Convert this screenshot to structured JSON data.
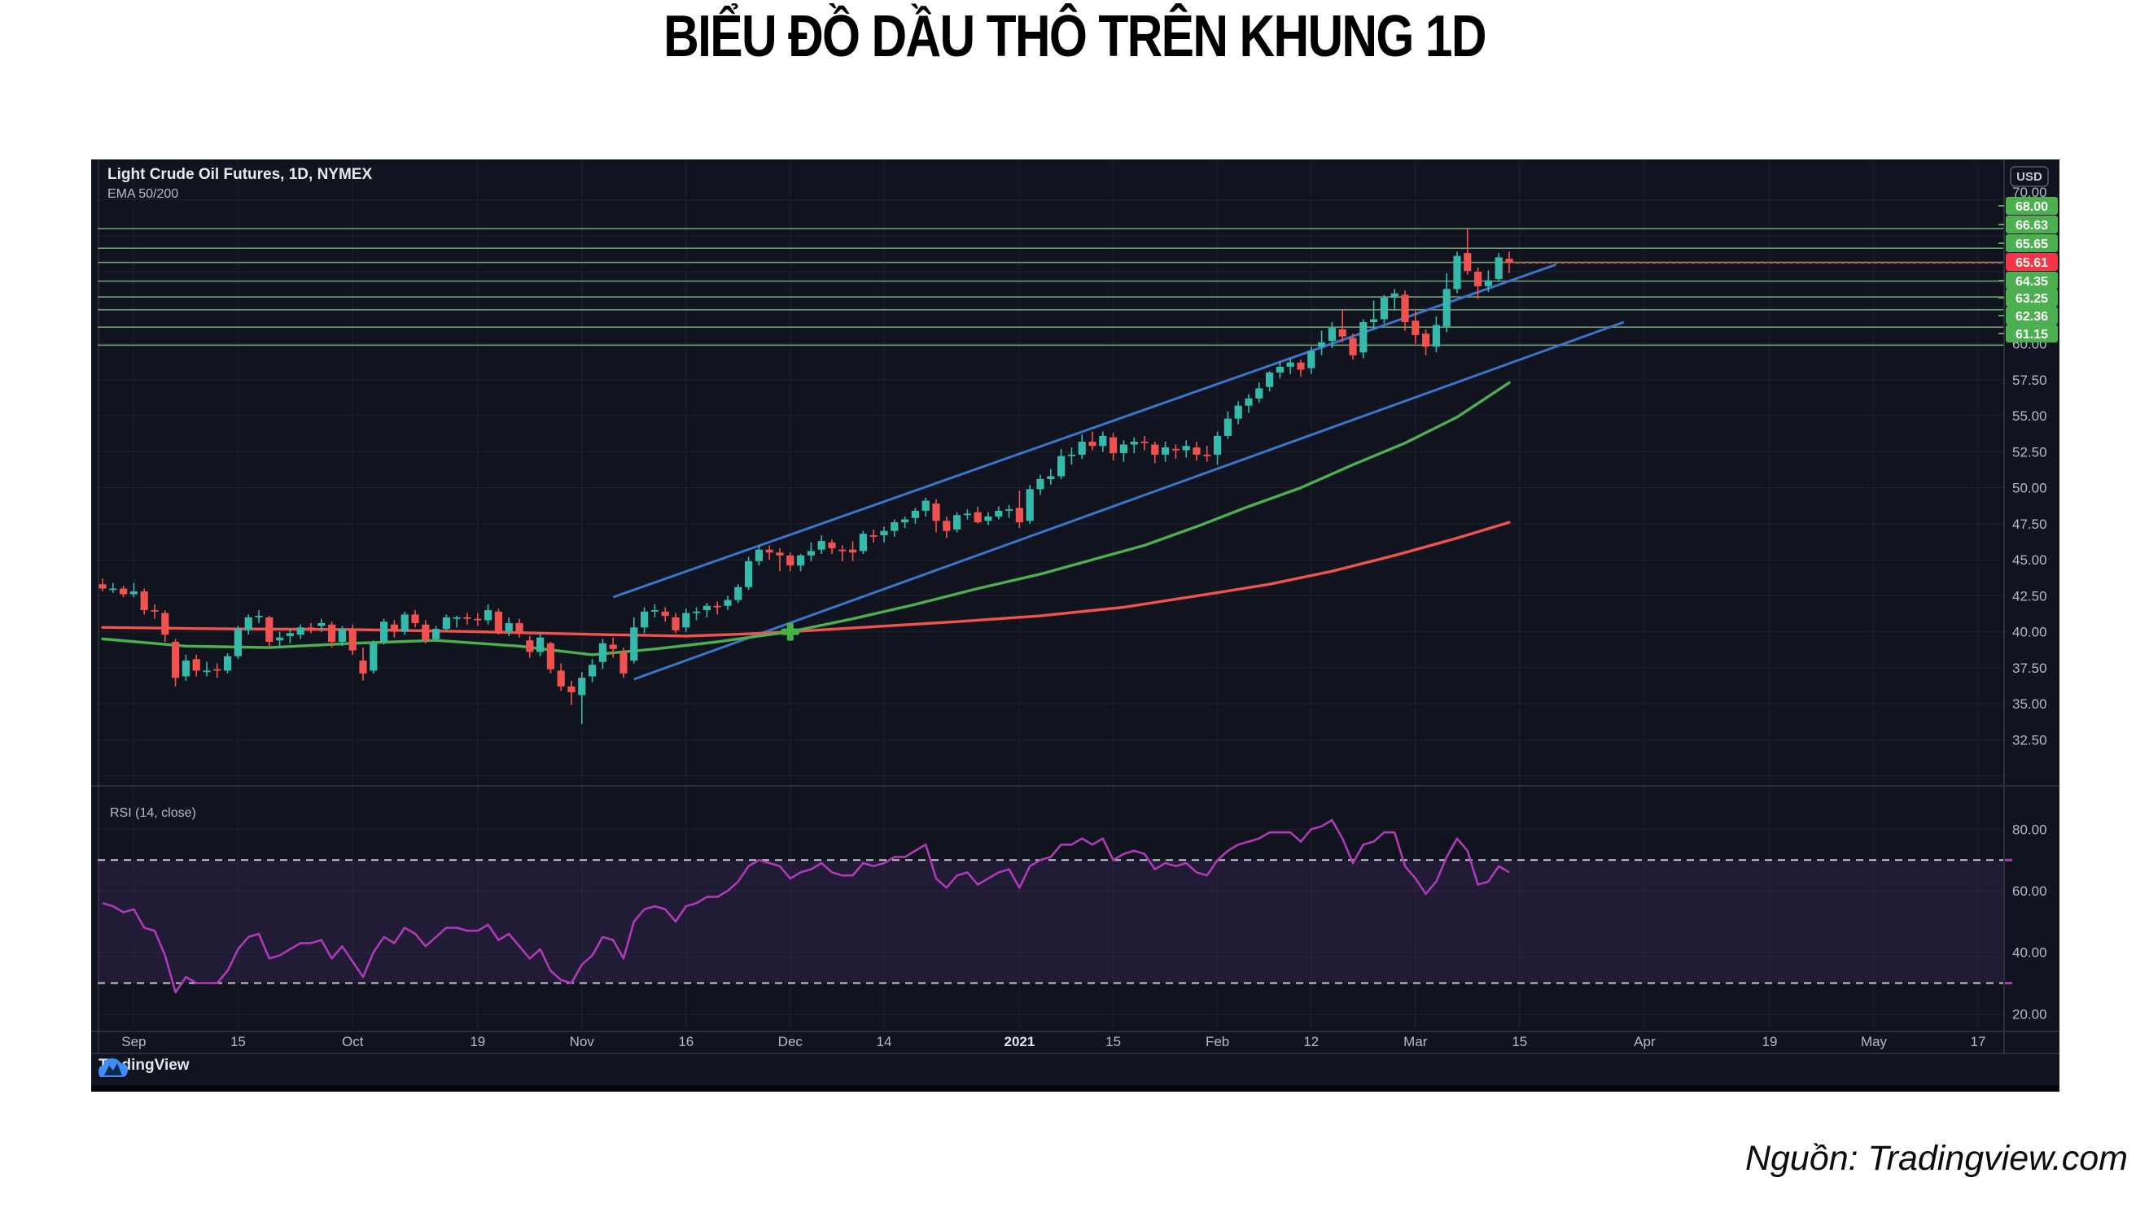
{
  "title": "BIỂU ĐỒ DẦU THÔ TRÊN KHUNG 1D",
  "source_note": "Nguồn: Tradingview.com",
  "chart": {
    "symbol_label": "Light Crude Oil Futures, 1D, NYMEX",
    "indicator_label": "EMA 50/200",
    "rsi_label": "RSI (14, close)",
    "currency_button": "USD",
    "watermark": "TradingView",
    "colors": {
      "background": "#11141e",
      "up": "#35b9ab",
      "down": "#ef524f",
      "ema50": "#4caf50",
      "ema200": "#ef5350",
      "channel": "#3c74c8",
      "level_line": "#6f9b6f",
      "level_badge": "#4caf50",
      "last_badge": "#f23645",
      "marker": "#46b347",
      "rsi": "#ad3bb5",
      "rsi_band": "rgba(118,70,178,0.16)",
      "rsi_dash": "#c9c4d4",
      "grid": "rgba(140,150,170,0.09)",
      "separator": "#2a2e39",
      "axis_text": "#b5b9c4",
      "logo_blue": "#3e8ef7"
    }
  },
  "chart_data": {
    "type": "candlestick",
    "title": "Light Crude Oil Futures, 1D, NYMEX",
    "interval": "1D",
    "legend_indicators": [
      "EMA 50/200",
      "RSI (14, close)"
    ],
    "price_axis": {
      "currency": "USD",
      "visible_range": [
        29.3,
        72.8
      ],
      "ticks": [
        {
          "label": "70.00",
          "value": 70
        },
        {
          "label": "60.00",
          "value": 60
        },
        {
          "label": "57.50",
          "value": 57.5
        },
        {
          "label": "55.00",
          "value": 55
        },
        {
          "label": "52.50",
          "value": 52.5
        },
        {
          "label": "50.00",
          "value": 50
        },
        {
          "label": "47.50",
          "value": 47.5
        },
        {
          "label": "45.00",
          "value": 45
        },
        {
          "label": "42.50",
          "value": 42.5
        },
        {
          "label": "40.00",
          "value": 40
        },
        {
          "label": "37.50",
          "value": 37.5
        },
        {
          "label": "35.00",
          "value": 35
        },
        {
          "label": "32.50",
          "value": 32.5
        }
      ]
    },
    "time_axis": {
      "labels": [
        {
          "label": "Sep",
          "idx": 3
        },
        {
          "label": "15",
          "idx": 13
        },
        {
          "label": "Oct",
          "idx": 24
        },
        {
          "label": "19",
          "idx": 36
        },
        {
          "label": "Nov",
          "idx": 46
        },
        {
          "label": "16",
          "idx": 56
        },
        {
          "label": "Dec",
          "idx": 66
        },
        {
          "label": "14",
          "idx": 75
        },
        {
          "label": "2021",
          "idx": 88,
          "bold": true
        },
        {
          "label": "15",
          "idx": 97
        },
        {
          "label": "Feb",
          "idx": 107
        },
        {
          "label": "12",
          "idx": 116
        },
        {
          "label": "Mar",
          "idx": 126
        },
        {
          "label": "15",
          "idx": 136
        },
        {
          "label": "Apr",
          "idx": 148
        },
        {
          "label": "19",
          "idx": 160
        },
        {
          "label": "May",
          "idx": 170
        },
        {
          "label": "17",
          "idx": 180
        }
      ]
    },
    "candles": [
      [
        43.3,
        43.7,
        42.8,
        43.0
      ],
      [
        43.0,
        43.4,
        42.7,
        43.0
      ],
      [
        43.0,
        43.2,
        42.4,
        42.6
      ],
      [
        42.6,
        43.4,
        42.4,
        42.8
      ],
      [
        42.8,
        43.0,
        41.2,
        41.5
      ],
      [
        41.5,
        41.9,
        40.9,
        41.4
      ],
      [
        41.3,
        41.5,
        39.3,
        39.8
      ],
      [
        39.3,
        39.5,
        36.2,
        36.8
      ],
      [
        36.9,
        38.4,
        36.6,
        38.0
      ],
      [
        38.1,
        38.4,
        36.9,
        37.3
      ],
      [
        37.3,
        37.9,
        36.9,
        37.3
      ],
      [
        37.4,
        37.8,
        36.8,
        37.3
      ],
      [
        37.3,
        38.5,
        37.1,
        38.3
      ],
      [
        38.3,
        40.4,
        38.1,
        40.2
      ],
      [
        40.1,
        41.2,
        39.8,
        41.0
      ],
      [
        41.0,
        41.5,
        40.6,
        41.1
      ],
      [
        41.0,
        41.1,
        38.9,
        39.3
      ],
      [
        39.4,
        40.0,
        39.0,
        39.6
      ],
      [
        39.7,
        40.2,
        39.2,
        39.9
      ],
      [
        39.8,
        40.5,
        39.5,
        40.3
      ],
      [
        40.3,
        40.6,
        39.9,
        40.2
      ],
      [
        40.4,
        40.9,
        40.0,
        40.6
      ],
      [
        40.5,
        40.7,
        38.9,
        39.3
      ],
      [
        39.3,
        40.4,
        39.0,
        40.2
      ],
      [
        40.2,
        40.5,
        38.4,
        38.7
      ],
      [
        38.0,
        38.9,
        36.6,
        37.1
      ],
      [
        37.3,
        39.4,
        37.1,
        39.2
      ],
      [
        39.3,
        40.9,
        39.1,
        40.7
      ],
      [
        40.5,
        40.8,
        39.6,
        40.0
      ],
      [
        40.0,
        41.4,
        39.8,
        41.2
      ],
      [
        41.2,
        41.5,
        40.3,
        40.6
      ],
      [
        40.5,
        40.8,
        39.2,
        39.4
      ],
      [
        39.5,
        40.4,
        39.3,
        40.2
      ],
      [
        40.2,
        41.2,
        40.0,
        41.0
      ],
      [
        40.9,
        41.1,
        40.3,
        41.0
      ],
      [
        41.0,
        41.3,
        40.5,
        40.9
      ],
      [
        40.9,
        41.3,
        40.4,
        40.8
      ],
      [
        40.8,
        41.9,
        40.5,
        41.5
      ],
      [
        41.4,
        41.6,
        39.8,
        40.0
      ],
      [
        40.0,
        41.0,
        39.7,
        40.6
      ],
      [
        40.6,
        40.9,
        39.6,
        39.9
      ],
      [
        39.4,
        39.7,
        38.2,
        38.6
      ],
      [
        38.6,
        39.9,
        38.3,
        39.6
      ],
      [
        39.2,
        39.3,
        37.1,
        37.4
      ],
      [
        37.3,
        37.8,
        35.9,
        36.2
      ],
      [
        36.2,
        36.6,
        34.9,
        35.8
      ],
      [
        35.6,
        37.2,
        33.6,
        36.8
      ],
      [
        36.9,
        38.1,
        36.5,
        37.7
      ],
      [
        37.9,
        39.5,
        37.4,
        39.2
      ],
      [
        39.1,
        39.6,
        38.2,
        38.8
      ],
      [
        38.6,
        38.9,
        36.8,
        37.1
      ],
      [
        38.0,
        41.0,
        37.8,
        40.3
      ],
      [
        40.3,
        41.7,
        39.9,
        41.4
      ],
      [
        41.4,
        41.9,
        41.0,
        41.5
      ],
      [
        41.4,
        41.7,
        40.7,
        41.1
      ],
      [
        41.0,
        41.3,
        39.9,
        40.1
      ],
      [
        40.3,
        41.6,
        40.0,
        41.3
      ],
      [
        41.3,
        41.7,
        40.8,
        41.4
      ],
      [
        41.5,
        42.0,
        41.0,
        41.8
      ],
      [
        41.8,
        42.1,
        41.2,
        41.7
      ],
      [
        41.8,
        42.5,
        41.5,
        42.2
      ],
      [
        42.2,
        43.3,
        42.0,
        43.1
      ],
      [
        43.1,
        45.2,
        42.9,
        44.9
      ],
      [
        44.9,
        46.0,
        44.6,
        45.7
      ],
      [
        45.7,
        46.0,
        45.0,
        45.5
      ],
      [
        45.5,
        45.8,
        44.2,
        45.3
      ],
      [
        45.3,
        45.5,
        44.2,
        44.6
      ],
      [
        44.6,
        45.4,
        44.2,
        45.3
      ],
      [
        45.3,
        46.2,
        44.9,
        45.6
      ],
      [
        45.7,
        46.7,
        45.4,
        46.3
      ],
      [
        46.2,
        46.4,
        45.4,
        45.8
      ],
      [
        45.7,
        46.0,
        44.9,
        45.6
      ],
      [
        45.7,
        46.3,
        44.9,
        45.5
      ],
      [
        45.6,
        47.0,
        45.4,
        46.8
      ],
      [
        46.7,
        47.1,
        46.2,
        46.6
      ],
      [
        46.7,
        47.3,
        46.2,
        47.0
      ],
      [
        47.0,
        47.8,
        46.6,
        47.6
      ],
      [
        47.6,
        48.0,
        47.2,
        47.8
      ],
      [
        47.9,
        48.6,
        47.5,
        48.4
      ],
      [
        48.4,
        49.3,
        48.0,
        49.1
      ],
      [
        48.9,
        49.2,
        46.9,
        47.7
      ],
      [
        47.7,
        48.0,
        46.5,
        47.0
      ],
      [
        47.1,
        48.3,
        46.9,
        48.1
      ],
      [
        48.1,
        48.5,
        47.8,
        48.2
      ],
      [
        48.3,
        48.7,
        47.5,
        47.6
      ],
      [
        47.7,
        48.3,
        47.4,
        48.0
      ],
      [
        48.0,
        48.7,
        47.8,
        48.4
      ],
      [
        48.4,
        48.8,
        47.9,
        48.5
      ],
      [
        48.6,
        49.8,
        47.2,
        47.6
      ],
      [
        47.7,
        50.2,
        47.5,
        49.9
      ],
      [
        49.9,
        50.9,
        49.5,
        50.6
      ],
      [
        50.6,
        51.3,
        50.2,
        50.8
      ],
      [
        50.8,
        52.7,
        50.6,
        52.2
      ],
      [
        52.2,
        52.8,
        51.6,
        52.3
      ],
      [
        52.3,
        53.7,
        52.0,
        53.2
      ],
      [
        53.2,
        53.9,
        52.6,
        52.9
      ],
      [
        52.9,
        53.9,
        52.5,
        53.6
      ],
      [
        53.5,
        53.8,
        51.9,
        52.4
      ],
      [
        52.4,
        53.3,
        51.8,
        53.0
      ],
      [
        53.0,
        53.5,
        52.4,
        53.2
      ],
      [
        53.2,
        53.6,
        52.6,
        53.1
      ],
      [
        53.0,
        53.2,
        51.7,
        52.3
      ],
      [
        52.3,
        53.2,
        51.8,
        52.8
      ],
      [
        52.7,
        53.0,
        52.0,
        52.6
      ],
      [
        52.6,
        53.3,
        52.1,
        52.9
      ],
      [
        52.8,
        53.2,
        51.9,
        52.3
      ],
      [
        52.3,
        52.9,
        51.8,
        52.2
      ],
      [
        52.3,
        53.9,
        51.6,
        53.6
      ],
      [
        53.6,
        55.3,
        53.4,
        54.8
      ],
      [
        54.8,
        56.0,
        54.4,
        55.7
      ],
      [
        55.7,
        56.5,
        55.2,
        56.2
      ],
      [
        56.2,
        57.3,
        55.9,
        56.9
      ],
      [
        57.0,
        58.1,
        56.7,
        58.0
      ],
      [
        58.0,
        58.8,
        57.6,
        58.4
      ],
      [
        58.4,
        59.0,
        57.9,
        58.7
      ],
      [
        58.7,
        58.9,
        57.7,
        58.2
      ],
      [
        58.3,
        59.8,
        57.9,
        59.5
      ],
      [
        59.8,
        60.9,
        59.2,
        60.1
      ],
      [
        60.2,
        61.5,
        59.7,
        61.1
      ],
      [
        61.0,
        62.3,
        60.1,
        60.5
      ],
      [
        60.4,
        60.7,
        58.9,
        59.2
      ],
      [
        59.4,
        61.7,
        59.0,
        61.5
      ],
      [
        61.5,
        63.0,
        61.0,
        61.7
      ],
      [
        61.7,
        63.4,
        61.4,
        63.2
      ],
      [
        63.2,
        63.8,
        62.3,
        63.5
      ],
      [
        63.4,
        63.7,
        60.9,
        61.5
      ],
      [
        61.6,
        62.3,
        60.0,
        60.6
      ],
      [
        60.7,
        61.0,
        59.2,
        59.8
      ],
      [
        59.8,
        61.9,
        59.4,
        61.3
      ],
      [
        61.2,
        64.9,
        60.8,
        63.8
      ],
      [
        63.8,
        66.4,
        63.5,
        66.1
      ],
      [
        66.3,
        67.98,
        64.8,
        65.05
      ],
      [
        65.0,
        65.3,
        63.1,
        64.0
      ],
      [
        64.0,
        65.1,
        63.6,
        64.4
      ],
      [
        64.5,
        66.3,
        64.3,
        66.0
      ],
      [
        65.9,
        66.4,
        64.9,
        65.61
      ]
    ],
    "ema50": [
      [
        0,
        39.5
      ],
      [
        8,
        39.0
      ],
      [
        16,
        38.9
      ],
      [
        24,
        39.2
      ],
      [
        32,
        39.4
      ],
      [
        40,
        39.0
      ],
      [
        47,
        38.4
      ],
      [
        53,
        38.8
      ],
      [
        59,
        39.3
      ],
      [
        66,
        40.0
      ],
      [
        72,
        40.9
      ],
      [
        78,
        41.9
      ],
      [
        84,
        43.0
      ],
      [
        90,
        44.0
      ],
      [
        96,
        45.2
      ],
      [
        100,
        46.0
      ],
      [
        105,
        47.3
      ],
      [
        110,
        48.7
      ],
      [
        115,
        50.0
      ],
      [
        120,
        51.6
      ],
      [
        125,
        53.1
      ],
      [
        130,
        54.9
      ],
      [
        135,
        57.3
      ]
    ],
    "ema200": [
      [
        0,
        40.3
      ],
      [
        12,
        40.2
      ],
      [
        24,
        40.15
      ],
      [
        36,
        40.0
      ],
      [
        48,
        39.8
      ],
      [
        56,
        39.7
      ],
      [
        62,
        39.85
      ],
      [
        66,
        40.0
      ],
      [
        74,
        40.35
      ],
      [
        82,
        40.7
      ],
      [
        90,
        41.1
      ],
      [
        98,
        41.7
      ],
      [
        106,
        42.6
      ],
      [
        112,
        43.3
      ],
      [
        118,
        44.2
      ],
      [
        124,
        45.3
      ],
      [
        130,
        46.5
      ],
      [
        135,
        47.6
      ]
    ],
    "levels": [
      {
        "price": 68.0,
        "label": "68.00"
      },
      {
        "price": 66.63,
        "label": "66.63"
      },
      {
        "price": 65.65,
        "label": "65.65"
      },
      {
        "price": 64.35,
        "label": "64.35"
      },
      {
        "price": 63.25,
        "label": "63.25"
      },
      {
        "price": 62.36,
        "label": "62.36"
      },
      {
        "price": 61.15,
        "label": "61.15"
      },
      {
        "price": 59.9,
        "label": null
      }
    ],
    "channel": {
      "upper": [
        [
          49,
          42.4
        ],
        [
          139.5,
          65.5
        ]
      ],
      "lower": [
        [
          51,
          36.7
        ],
        [
          146,
          61.5
        ]
      ]
    },
    "last_price": {
      "value": 65.61,
      "label": "65.61"
    },
    "cross_marker": {
      "idx": 66,
      "price": 40.0
    },
    "rsi": {
      "label": "RSI (14, close)",
      "overbought": 70,
      "oversold": 30,
      "range": [
        14.8,
        93.6
      ],
      "ticks": [
        {
          "label": "80.00",
          "value": 80
        },
        {
          "label": "60.00",
          "value": 60
        },
        {
          "label": "40.00",
          "value": 40
        },
        {
          "label": "20.00",
          "value": 20
        }
      ],
      "values": [
        56,
        55,
        53,
        54,
        48,
        47,
        39,
        27,
        32,
        30,
        30,
        30,
        34,
        41,
        45,
        46,
        38,
        39,
        41,
        43,
        43,
        44,
        38,
        42,
        37,
        32,
        40,
        45,
        43,
        48,
        46,
        42,
        45,
        48,
        48,
        47,
        47,
        49,
        44,
        46,
        42,
        38,
        41,
        34,
        31,
        30,
        36,
        39,
        45,
        44,
        38,
        50,
        54,
        55,
        54,
        50,
        55,
        56,
        58,
        58,
        60,
        63,
        68,
        70,
        69,
        68,
        64,
        66,
        67,
        69,
        66,
        65,
        65,
        69,
        68,
        69,
        71,
        71,
        73,
        75,
        64,
        61,
        65,
        66,
        62,
        64,
        66,
        67,
        61,
        68,
        70,
        71,
        75,
        75,
        77,
        75,
        77,
        70,
        72,
        73,
        72,
        67,
        69,
        68,
        69,
        66,
        65,
        70,
        73,
        75,
        76,
        77,
        79,
        79,
        79,
        76,
        80,
        81,
        83,
        77,
        69,
        75,
        76,
        79,
        79,
        68,
        64,
        59,
        63,
        71,
        77,
        73,
        62,
        63,
        68,
        66
      ]
    }
  }
}
